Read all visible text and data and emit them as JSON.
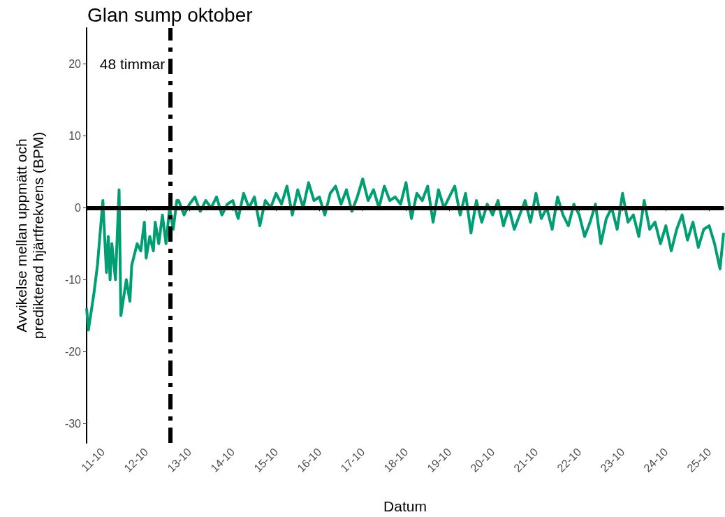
{
  "chart_data": {
    "type": "line",
    "title": "Glan sump oktober",
    "xlabel": "Datum",
    "ylabel": "Avvikelse mellan uppmätt och\npredikterad hjärtfrekvens (BPM)",
    "x": [
      "--10-10T15:00",
      "--10-10T16:00",
      "--10-10T19:00",
      "--10-10T21:00",
      "--10-11T00:00",
      "--10-11T02:00",
      "--10-11T03:00",
      "--10-11T04:00",
      "--10-11T05:00",
      "--10-11T07:00",
      "--10-11T09:00",
      "--10-11T10:00",
      "--10-11T13:00",
      "--10-11T15:00",
      "--10-11T16:00",
      "--10-11T19:00",
      "--10-11T21:00",
      "--10-11T23:00",
      "--10-12T00:00",
      "--10-12T02:00",
      "--10-12T04:00",
      "--10-12T05:00",
      "--10-12T07:00",
      "--10-12T09:00",
      "--10-12T11:00",
      "--10-12T13:00",
      "--10-12T15:00",
      "--10-12T17:00",
      "--10-12T18:00",
      "--10-12T21:00",
      "--10-13T00:00",
      "--10-13T03:00",
      "--10-13T06:00",
      "--10-13T09:00",
      "--10-13T12:00",
      "--10-13T15:00",
      "--10-13T18:00",
      "--10-13T21:00",
      "--10-14T00:00",
      "--10-14T03:00",
      "--10-14T06:00",
      "--10-14T09:00",
      "--10-14T12:00",
      "--10-14T15:00",
      "--10-14T18:00",
      "--10-14T21:00",
      "--10-15T00:00",
      "--10-15T03:00",
      "--10-15T06:00",
      "--10-15T09:00",
      "--10-15T12:00",
      "--10-15T15:00",
      "--10-15T18:00",
      "--10-15T21:00",
      "--10-16T00:00",
      "--10-16T03:00",
      "--10-16T06:00",
      "--10-16T09:00",
      "--10-16T12:00",
      "--10-16T15:00",
      "--10-16T18:00",
      "--10-16T21:00",
      "--10-17T00:00",
      "--10-17T03:00",
      "--10-17T06:00",
      "--10-17T09:00",
      "--10-17T12:00",
      "--10-17T15:00",
      "--10-17T18:00",
      "--10-17T21:00",
      "--10-18T00:00",
      "--10-18T03:00",
      "--10-18T06:00",
      "--10-18T09:00",
      "--10-18T12:00",
      "--10-18T15:00",
      "--10-18T18:00",
      "--10-18T21:00",
      "--10-19T00:00",
      "--10-19T03:00",
      "--10-19T06:00",
      "--10-19T09:00",
      "--10-19T12:00",
      "--10-19T15:00",
      "--10-19T18:00",
      "--10-19T21:00",
      "--10-20T00:00",
      "--10-20T03:00",
      "--10-20T06:00",
      "--10-20T09:00",
      "--10-20T12:00",
      "--10-20T15:00",
      "--10-20T18:00",
      "--10-20T21:00",
      "--10-21T00:00",
      "--10-21T03:00",
      "--10-21T06:00",
      "--10-21T09:00",
      "--10-21T12:00",
      "--10-21T15:00",
      "--10-21T18:00",
      "--10-21T21:00",
      "--10-22T00:00",
      "--10-22T03:00",
      "--10-22T06:00",
      "--10-22T09:00",
      "--10-22T12:00",
      "--10-22T15:00",
      "--10-22T18:00",
      "--10-22T21:00",
      "--10-23T00:00",
      "--10-23T03:00",
      "--10-23T06:00",
      "--10-23T09:00",
      "--10-23T12:00",
      "--10-23T15:00",
      "--10-23T18:00",
      "--10-23T21:00",
      "--10-24T00:00",
      "--10-24T03:00",
      "--10-24T06:00",
      "--10-24T09:00",
      "--10-24T12:00",
      "--10-24T15:00",
      "--10-24T18:00",
      "--10-24T21:00",
      "--10-25T00:00",
      "--10-25T03:00",
      "--10-25T06:00",
      "--10-25T08:00"
    ],
    "series": [
      {
        "color": "#009e73",
        "values": [
          -14,
          -17,
          -12,
          -8,
          1,
          -9,
          -4,
          -10,
          -5,
          -10,
          2.5,
          -15,
          -10,
          -13,
          -8,
          -5,
          -6,
          -2,
          -7,
          -4,
          -6,
          -2,
          -5,
          -1,
          -5,
          0,
          -3,
          1,
          1,
          -1,
          0.5,
          1.5,
          -0.5,
          1,
          0,
          1.5,
          -1,
          0.5,
          1,
          -1.5,
          2,
          0,
          1.5,
          -2.5,
          1,
          0,
          2,
          0.5,
          3,
          -1,
          2.5,
          0,
          3.5,
          1,
          1.5,
          -1,
          2,
          3,
          0.5,
          2.5,
          -0.5,
          1.5,
          4,
          1,
          2.5,
          0,
          3,
          1,
          1.5,
          0.5,
          3.5,
          -1.5,
          2,
          1,
          3,
          -2,
          2.5,
          0,
          1.5,
          3,
          -1,
          2,
          -3.5,
          1,
          -2,
          0.5,
          -1,
          1,
          -2.5,
          0,
          -3,
          -1,
          1,
          -2,
          2,
          -1.5,
          0,
          -3,
          1.5,
          -1,
          -2.5,
          0.5,
          -1,
          -4,
          -2,
          0.5,
          -5,
          -1.5,
          0,
          -3,
          2,
          -2,
          -1,
          -4,
          1,
          -3,
          -2,
          -5,
          -2.5,
          -6,
          -3,
          -1,
          -4.5,
          -2,
          -5.5,
          -3,
          -2.5,
          -5,
          -8.5,
          -3.5
        ]
      }
    ],
    "xlim": [
      "--10-10T15:00",
      "--10-25T08:00"
    ],
    "xticks": [
      {
        "value": "--10-11",
        "label": "11-10"
      },
      {
        "value": "--10-12",
        "label": "12-10"
      },
      {
        "value": "--10-13",
        "label": "13-10"
      },
      {
        "value": "--10-14",
        "label": "14-10"
      },
      {
        "value": "--10-15",
        "label": "15-10"
      },
      {
        "value": "--10-16",
        "label": "16-10"
      },
      {
        "value": "--10-17",
        "label": "17-10"
      },
      {
        "value": "--10-18",
        "label": "18-10"
      },
      {
        "value": "--10-19",
        "label": "19-10"
      },
      {
        "value": "--10-20",
        "label": "20-10"
      },
      {
        "value": "--10-21",
        "label": "21-10"
      },
      {
        "value": "--10-22",
        "label": "22-10"
      },
      {
        "value": "--10-23",
        "label": "23-10"
      },
      {
        "value": "--10-24",
        "label": "24-10"
      },
      {
        "value": "--10-25",
        "label": "25-10"
      }
    ],
    "ylim": [
      -32.7,
      25
    ],
    "yticks": [
      -30,
      -20,
      -10,
      0,
      10,
      20
    ],
    "ref_lines": [
      {
        "axis": "y",
        "value": 0,
        "color": "#000000",
        "line_style": "solid"
      },
      {
        "axis": "x",
        "value": "--10-12T13:30",
        "label": "48 timmar",
        "color": "#000000",
        "line_style": "dashdot"
      }
    ],
    "grid": false
  }
}
